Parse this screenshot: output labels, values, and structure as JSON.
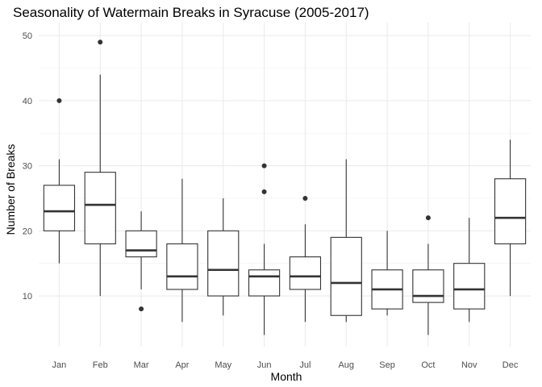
{
  "chart_data": {
    "type": "boxplot",
    "title": "Seasonality of Watermain Breaks in Syracuse (2005-2017)",
    "xlabel": "Month",
    "ylabel": "Number of Breaks",
    "categories": [
      "Jan",
      "Feb",
      "Mar",
      "Apr",
      "May",
      "Jun",
      "Jul",
      "Aug",
      "Sep",
      "Oct",
      "Nov",
      "Dec"
    ],
    "ylim": [
      2.2,
      52
    ],
    "yticks": [
      10,
      20,
      30,
      40,
      50
    ],
    "grid": true,
    "legend": "none",
    "boxes": [
      {
        "category": "Jan",
        "min": 15,
        "q1": 20,
        "median": 23,
        "q3": 27,
        "max": 31,
        "outliers": [
          40
        ]
      },
      {
        "category": "Feb",
        "min": 10,
        "q1": 18,
        "median": 24,
        "q3": 29,
        "max": 44,
        "outliers": [
          49
        ]
      },
      {
        "category": "Mar",
        "min": 11,
        "q1": 16,
        "median": 17,
        "q3": 20,
        "max": 23,
        "outliers": [
          8
        ]
      },
      {
        "category": "Apr",
        "min": 6,
        "q1": 11,
        "median": 13,
        "q3": 18,
        "max": 28,
        "outliers": []
      },
      {
        "category": "May",
        "min": 7,
        "q1": 10,
        "median": 14,
        "q3": 20,
        "max": 25,
        "outliers": []
      },
      {
        "category": "Jun",
        "min": 4,
        "q1": 10,
        "median": 13,
        "q3": 14,
        "max": 18,
        "outliers": [
          26,
          30
        ]
      },
      {
        "category": "Jul",
        "min": 6,
        "q1": 11,
        "median": 13,
        "q3": 16,
        "max": 21,
        "outliers": [
          25
        ]
      },
      {
        "category": "Aug",
        "min": 6,
        "q1": 7,
        "median": 12,
        "q3": 19,
        "max": 31,
        "outliers": []
      },
      {
        "category": "Sep",
        "min": 7,
        "q1": 8,
        "median": 11,
        "q3": 14,
        "max": 20,
        "outliers": []
      },
      {
        "category": "Oct",
        "min": 4,
        "q1": 9,
        "median": 10,
        "q3": 14,
        "max": 18,
        "outliers": [
          22
        ]
      },
      {
        "category": "Nov",
        "min": 6,
        "q1": 8,
        "median": 11,
        "q3": 15,
        "max": 22,
        "outliers": []
      },
      {
        "category": "Dec",
        "min": 10,
        "q1": 18,
        "median": 22,
        "q3": 28,
        "max": 34,
        "outliers": []
      }
    ],
    "colors": {
      "box_line": "#333333",
      "box_fill": "#ffffff",
      "grid_major": "#ebebeb",
      "grid_minor": "#f2f2f2",
      "tick_text": "#4d4d4d"
    }
  }
}
